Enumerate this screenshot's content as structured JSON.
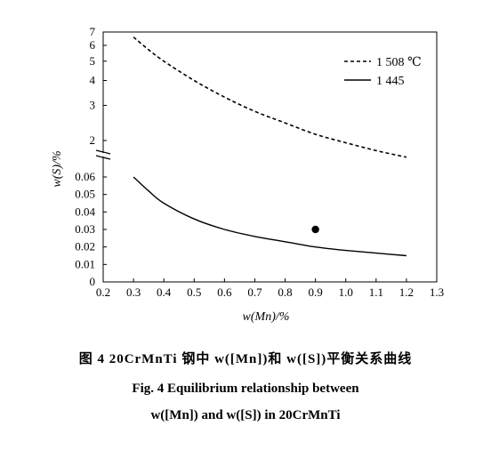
{
  "chart_data": {
    "type": "line",
    "xlabel": "w(Mn)/%",
    "ylabel": "w(S)/%",
    "x_ticks": [
      "0.2",
      "0.3",
      "0.4",
      "0.5",
      "0.6",
      "0.7",
      "0.8",
      "0.9",
      "1.0",
      "1.1",
      "1.2",
      "1.3"
    ],
    "xlim": [
      0.2,
      1.3
    ],
    "y_ticks_upper": [
      "2",
      "3",
      "4",
      "5",
      "6",
      "7"
    ],
    "y_ticks_lower": [
      "0",
      "0.01",
      "0.02",
      "0.03",
      "0.04",
      "0.05",
      "0.06"
    ],
    "y_scale": "log (upper segment, broken axis)",
    "ylim_upper": [
      1.6,
      7
    ],
    "ylim_lower": [
      0,
      0.065
    ],
    "series": [
      {
        "name": "1 508 ℃",
        "style": "dashed",
        "segment": "upper",
        "x": [
          0.3,
          0.35,
          0.4,
          0.5,
          0.6,
          0.7,
          0.8,
          0.9,
          1.0,
          1.1,
          1.2
        ],
        "y": [
          6.6,
          5.7,
          5.0,
          4.0,
          3.3,
          2.8,
          2.45,
          2.15,
          1.95,
          1.78,
          1.65
        ]
      },
      {
        "name": "1 445",
        "style": "solid",
        "segment": "lower",
        "x": [
          0.3,
          0.35,
          0.4,
          0.5,
          0.6,
          0.7,
          0.8,
          0.9,
          1.0,
          1.1,
          1.2
        ],
        "y": [
          0.06,
          0.052,
          0.045,
          0.036,
          0.03,
          0.026,
          0.023,
          0.02,
          0.018,
          0.0165,
          0.015
        ]
      }
    ],
    "points": [
      {
        "x": 0.9,
        "y": 0.03,
        "segment": "lower"
      }
    ],
    "legend_position": "top-right"
  },
  "caption": {
    "cn": "图 4   20CrMnTi 钢中 w([Mn])和 w([S])平衡关系曲线",
    "en_line1": "Fig. 4   Equilibrium relationship between",
    "en_line2": "w([Mn]) and w([S]) in 20CrMnTi"
  }
}
